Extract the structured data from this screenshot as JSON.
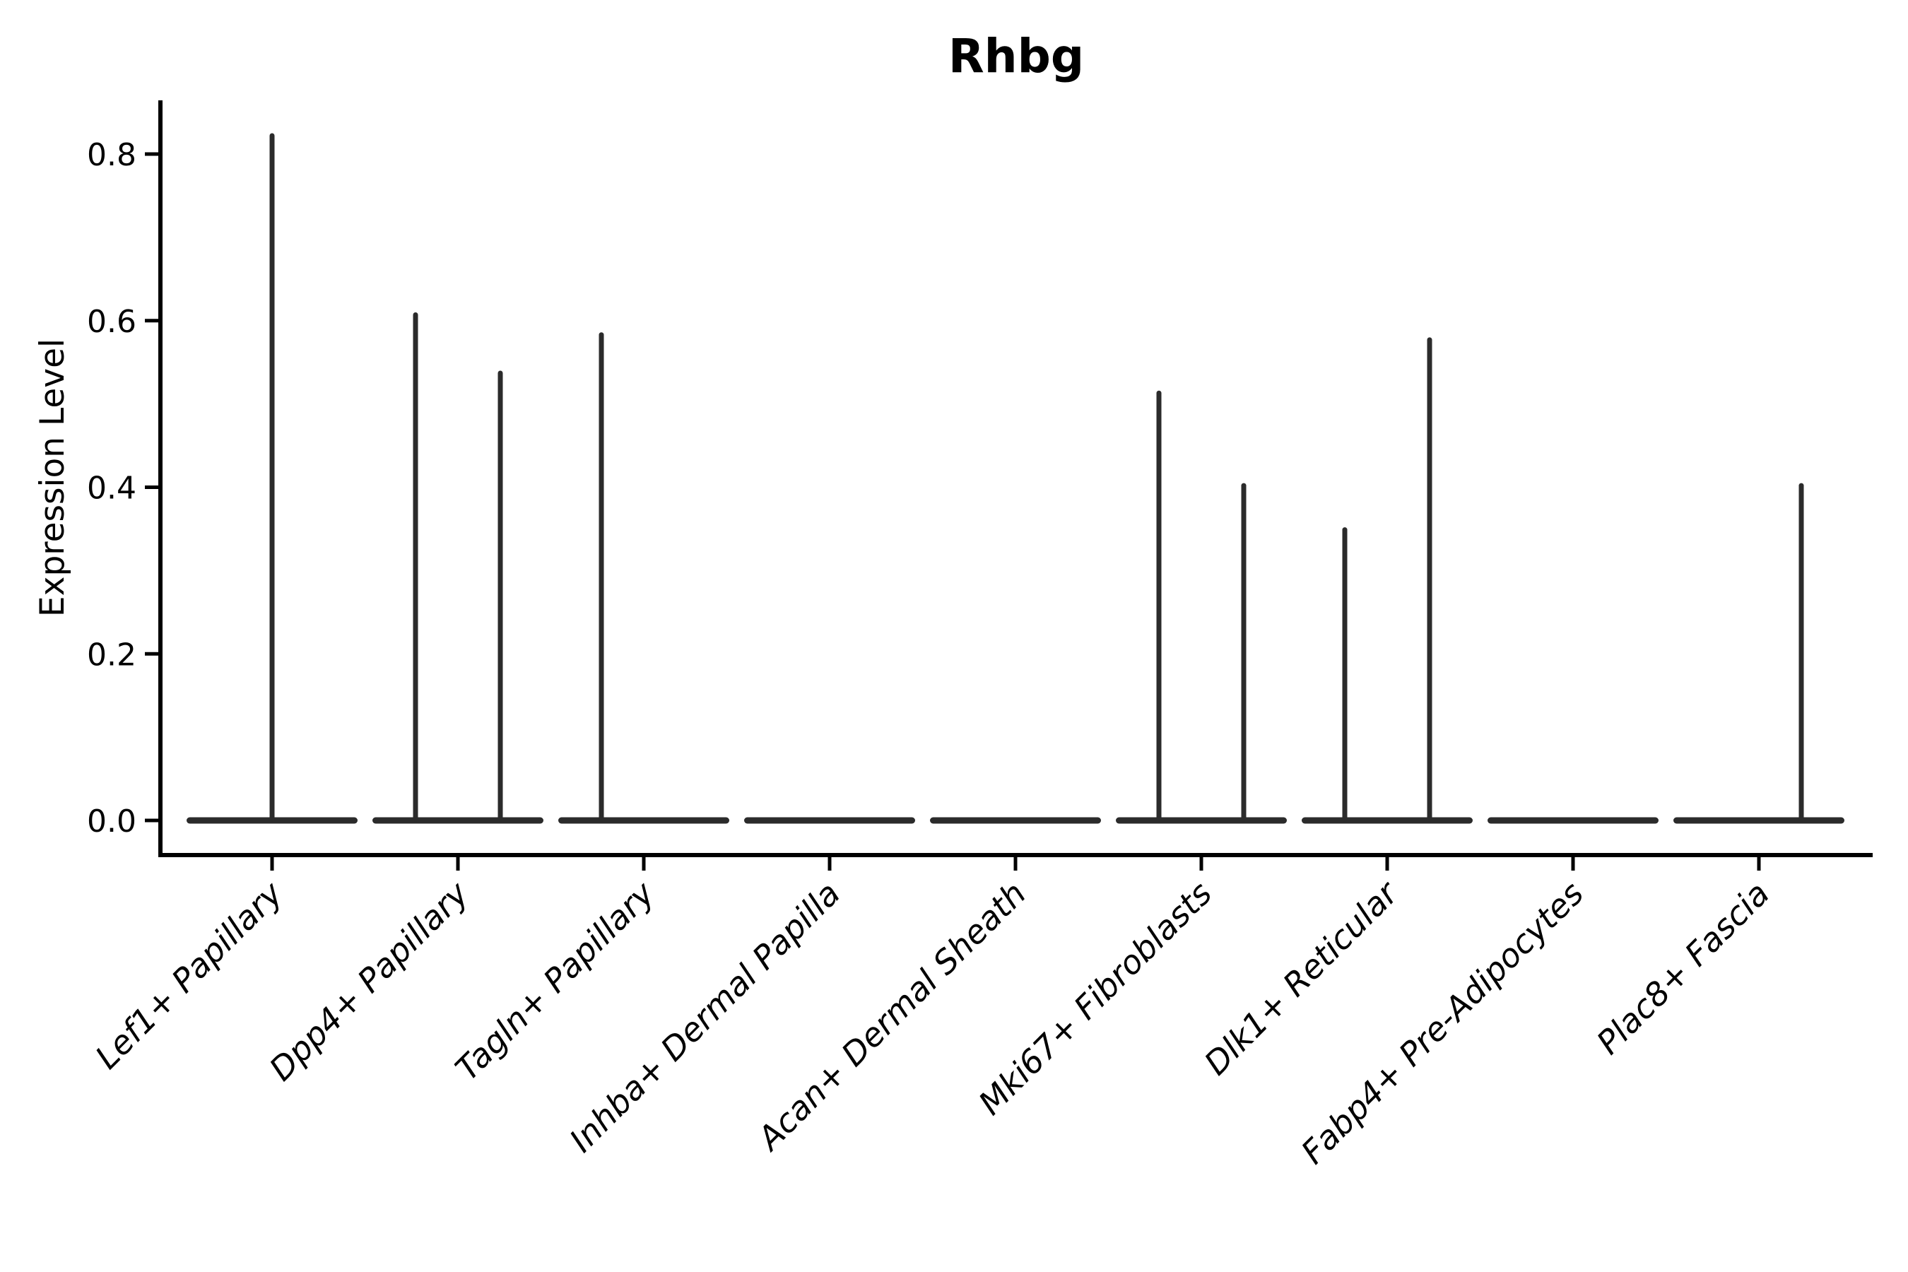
{
  "page": {
    "background_color": "#ffffff"
  },
  "chart_data": {
    "type": "violin",
    "title": "Rhbg",
    "ylabel": "Expression Level",
    "xlabel": "",
    "grid": false,
    "legend": "none",
    "axis_color": "#000000",
    "violin_color": "#2b2b2b",
    "ylim": [
      -0.04,
      0.86
    ],
    "y_ticks": [
      {
        "value": 0.0,
        "label": "0.0"
      },
      {
        "value": 0.2,
        "label": "0.2"
      },
      {
        "value": 0.4,
        "label": "0.4"
      },
      {
        "value": 0.6,
        "label": "0.6"
      },
      {
        "value": 0.8,
        "label": "0.8"
      }
    ],
    "categories": [
      "Lef1+ Papillary",
      "Dpp4+ Papillary",
      "Tagln+ Papillary",
      "Inhba+ Dermal Papilla",
      "Acan+ Dermal Sheath",
      "Mki67+ Fibroblasts",
      "Dlk1+ Reticular",
      "Fabp4+ Pre-Adipocytes",
      "Plac8+ Fascia"
    ],
    "violins": [
      {
        "category": "Lef1+ Papillary",
        "spikes": [
          {
            "position": "center",
            "value": 0.825
          }
        ]
      },
      {
        "category": "Dpp4+ Papillary",
        "spikes": [
          {
            "position": "left",
            "value": 0.61
          },
          {
            "position": "right",
            "value": 0.54
          }
        ]
      },
      {
        "category": "Tagln+ Papillary",
        "spikes": [
          {
            "position": "left",
            "value": 0.586
          }
        ]
      },
      {
        "category": "Inhba+ Dermal Papilla",
        "spikes": []
      },
      {
        "category": "Acan+ Dermal Sheath",
        "spikes": []
      },
      {
        "category": "Mki67+ Fibroblasts",
        "spikes": [
          {
            "position": "left",
            "value": 0.516
          },
          {
            "position": "right",
            "value": 0.405
          }
        ]
      },
      {
        "category": "Dlk1+ Reticular",
        "spikes": [
          {
            "position": "left",
            "value": 0.352
          },
          {
            "position": "right",
            "value": 0.58
          }
        ]
      },
      {
        "category": "Fabp4+ Pre-Adipocytes",
        "spikes": []
      },
      {
        "category": "Plac8+ Fascia",
        "spikes": [
          {
            "position": "right",
            "value": 0.405
          }
        ]
      }
    ]
  }
}
